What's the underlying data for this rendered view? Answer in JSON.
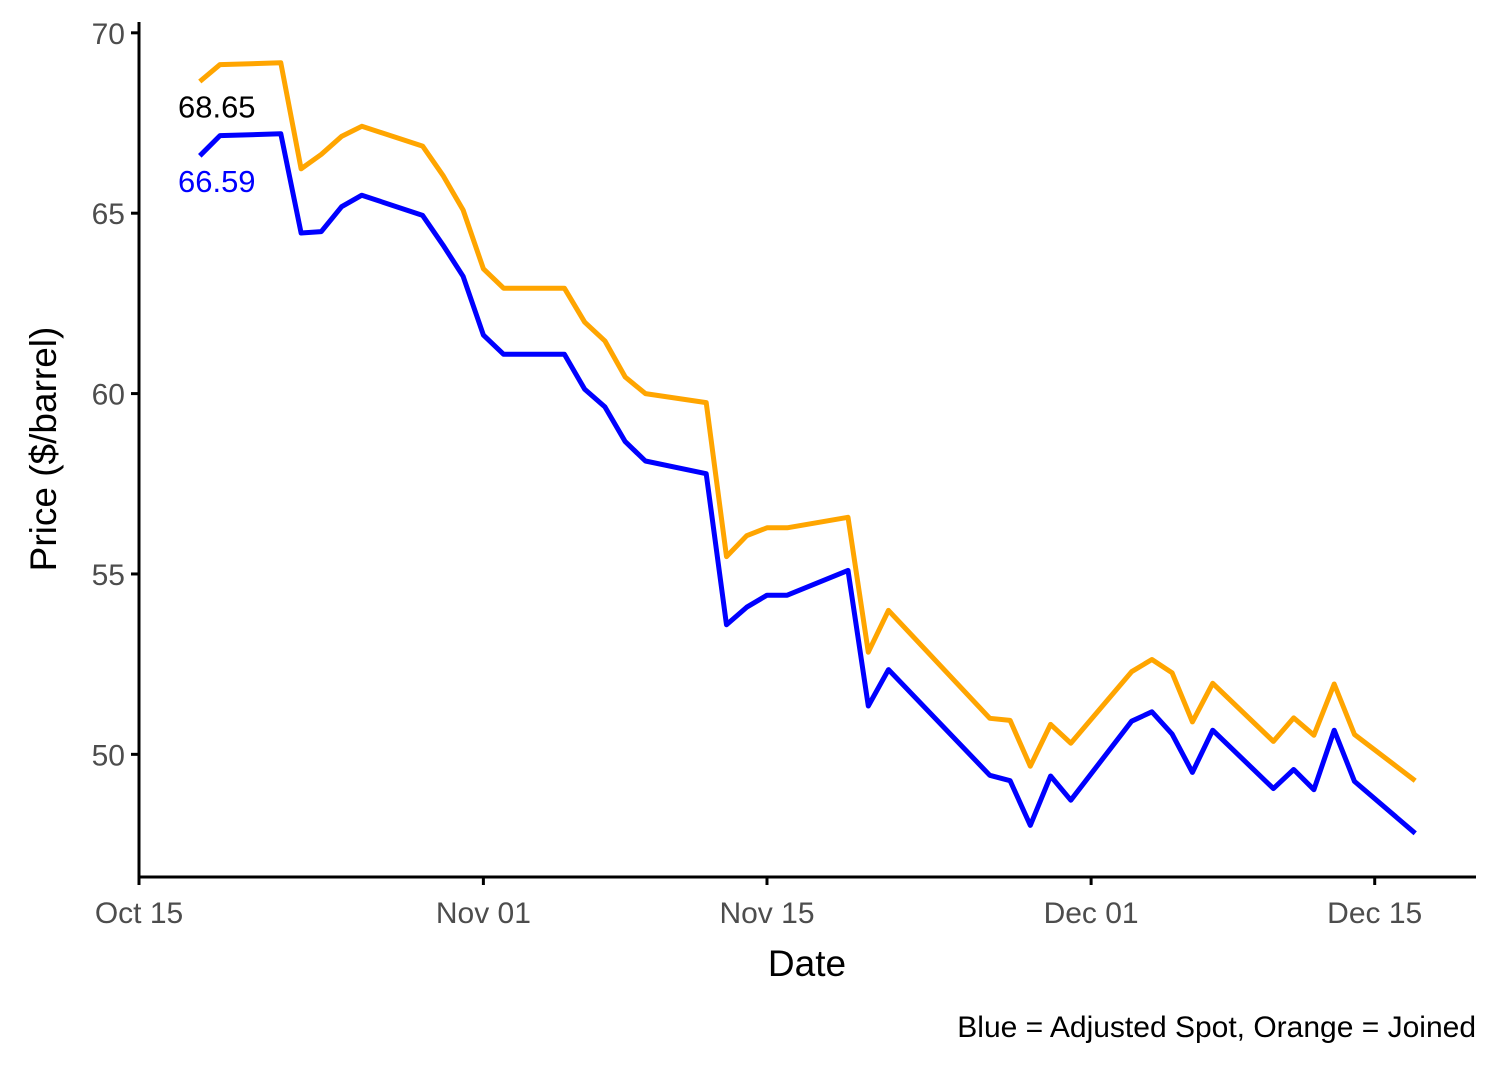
{
  "chart_data": {
    "type": "line",
    "xlabel": "Date",
    "ylabel": "Price ($/barrel)",
    "caption": "Blue = Adjusted Spot, Orange = Joined",
    "xlim": [
      "2018-10-15",
      "2018-12-20"
    ],
    "ylim": [
      46.6,
      70.3
    ],
    "x_ticks": [
      {
        "date": "2018-10-15",
        "label": "Oct 15"
      },
      {
        "date": "2018-11-01",
        "label": "Nov 01"
      },
      {
        "date": "2018-11-15",
        "label": "Nov 15"
      },
      {
        "date": "2018-12-01",
        "label": "Dec 01"
      },
      {
        "date": "2018-12-15",
        "label": "Dec 15"
      }
    ],
    "y_ticks": [
      {
        "value": 50,
        "label": "50"
      },
      {
        "value": 55,
        "label": "55"
      },
      {
        "value": 60,
        "label": "60"
      },
      {
        "value": 65,
        "label": "65"
      },
      {
        "value": 70,
        "label": "70"
      }
    ],
    "grid": false,
    "legend": "none",
    "series": [
      {
        "color": "#FFA500",
        "label": "68.65",
        "label_color": "#000000",
        "points": [
          [
            "2018-10-18",
            68.65
          ],
          [
            "2018-10-19",
            69.12
          ],
          [
            "2018-10-22",
            69.17
          ],
          [
            "2018-10-23",
            66.23
          ],
          [
            "2018-10-24",
            66.63
          ],
          [
            "2018-10-25",
            67.13
          ],
          [
            "2018-10-26",
            67.41
          ],
          [
            "2018-10-29",
            66.86
          ],
          [
            "2018-10-30",
            66.05
          ],
          [
            "2018-10-31",
            65.09
          ],
          [
            "2018-11-01",
            63.46
          ],
          [
            "2018-11-02",
            62.92
          ],
          [
            "2018-11-05",
            62.92
          ],
          [
            "2018-11-06",
            61.98
          ],
          [
            "2018-11-07",
            61.46
          ],
          [
            "2018-11-08",
            60.46
          ],
          [
            "2018-11-09",
            60.0
          ],
          [
            "2018-11-12",
            59.75
          ],
          [
            "2018-11-13",
            55.48
          ],
          [
            "2018-11-14",
            56.06
          ],
          [
            "2018-11-15",
            56.28
          ],
          [
            "2018-11-16",
            56.28
          ],
          [
            "2018-11-19",
            56.57
          ],
          [
            "2018-11-20",
            52.83
          ],
          [
            "2018-11-21",
            53.99
          ],
          [
            "2018-11-26",
            51.0
          ],
          [
            "2018-11-27",
            50.94
          ],
          [
            "2018-11-28",
            49.67
          ],
          [
            "2018-11-29",
            50.83
          ],
          [
            "2018-11-30",
            50.31
          ],
          [
            "2018-12-03",
            52.29
          ],
          [
            "2018-12-04",
            52.63
          ],
          [
            "2018-12-05",
            52.26
          ],
          [
            "2018-12-06",
            50.9
          ],
          [
            "2018-12-07",
            51.97
          ],
          [
            "2018-12-10",
            50.36
          ],
          [
            "2018-12-11",
            51.01
          ],
          [
            "2018-12-12",
            50.53
          ],
          [
            "2018-12-13",
            51.95
          ],
          [
            "2018-12-14",
            50.55
          ],
          [
            "2018-12-17",
            49.27
          ]
        ]
      },
      {
        "color": "#0000FF",
        "label": "66.59",
        "label_color": "#0000FF",
        "points": [
          [
            "2018-10-18",
            66.59
          ],
          [
            "2018-10-19",
            67.15
          ],
          [
            "2018-10-22",
            67.2
          ],
          [
            "2018-10-23",
            64.45
          ],
          [
            "2018-10-24",
            64.49
          ],
          [
            "2018-10-25",
            65.18
          ],
          [
            "2018-10-26",
            65.5
          ],
          [
            "2018-10-29",
            64.94
          ],
          [
            "2018-10-30",
            64.12
          ],
          [
            "2018-10-31",
            63.25
          ],
          [
            "2018-11-01",
            61.62
          ],
          [
            "2018-11-02",
            61.09
          ],
          [
            "2018-11-05",
            61.09
          ],
          [
            "2018-11-06",
            60.12
          ],
          [
            "2018-11-07",
            59.63
          ],
          [
            "2018-11-08",
            58.67
          ],
          [
            "2018-11-09",
            58.13
          ],
          [
            "2018-11-12",
            57.78
          ],
          [
            "2018-11-13",
            53.59
          ],
          [
            "2018-11-14",
            54.08
          ],
          [
            "2018-11-15",
            54.41
          ],
          [
            "2018-11-16",
            54.41
          ],
          [
            "2018-11-19",
            55.1
          ],
          [
            "2018-11-20",
            51.34
          ],
          [
            "2018-11-21",
            52.35
          ],
          [
            "2018-11-26",
            49.42
          ],
          [
            "2018-11-27",
            49.27
          ],
          [
            "2018-11-28",
            48.03
          ],
          [
            "2018-11-29",
            49.4
          ],
          [
            "2018-11-30",
            48.73
          ],
          [
            "2018-12-03",
            50.92
          ],
          [
            "2018-12-04",
            51.18
          ],
          [
            "2018-12-05",
            50.56
          ],
          [
            "2018-12-06",
            49.5
          ],
          [
            "2018-12-07",
            50.67
          ],
          [
            "2018-12-10",
            49.05
          ],
          [
            "2018-12-11",
            49.58
          ],
          [
            "2018-12-12",
            49.02
          ],
          [
            "2018-12-13",
            50.67
          ],
          [
            "2018-12-14",
            49.25
          ],
          [
            "2018-12-17",
            47.81
          ]
        ]
      }
    ]
  }
}
